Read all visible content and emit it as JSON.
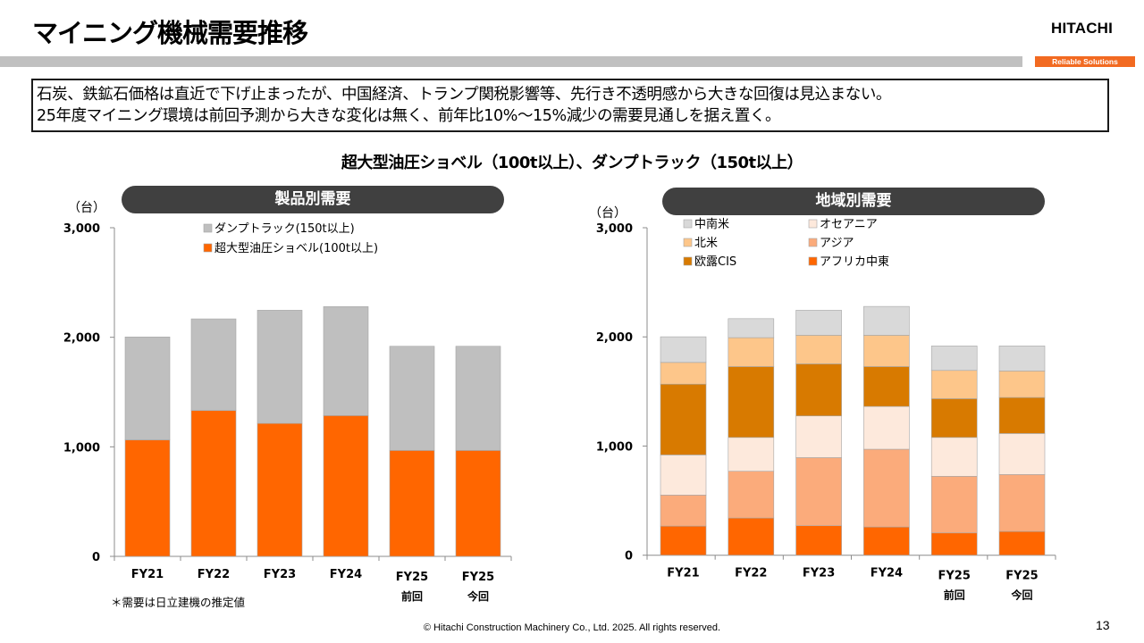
{
  "header": {
    "title": "マイニング機械需要推移",
    "logo": "HITACHI",
    "tagline": "Reliable Solutions"
  },
  "summary": {
    "line1": "石炭、鉄鉱石価格は直近で下げ止まったが、中国経済、トランプ関税影響等、先行き不透明感から大きな回復は見込まない。",
    "line2": "25年度マイニング環境は前回予測から大きな変化は無く、前年比10%～15%減少の需要見通しを据え置く。"
  },
  "subtitle": "超大型油圧ショベル（100t以上）、ダンプトラック（150t以上）",
  "footnote": "＊需要は日立建機の推定値",
  "footer": {
    "copyright": "© Hitachi Construction Machinery Co., Ltd. 2025. All rights reserved.",
    "page_number": "13"
  },
  "chart_data": [
    {
      "type": "bar",
      "stacked": true,
      "title": "製品別需要",
      "ylabel": "（台）",
      "xlabel": "",
      "ylim": [
        0,
        3000
      ],
      "yticks": [
        "0",
        "1,000",
        "2,000",
        "3,000"
      ],
      "ytick_values": [
        0,
        1000,
        2000,
        3000
      ],
      "grid": false,
      "legend_position": "top-left",
      "categories": [
        [
          "FY21"
        ],
        [
          "FY22"
        ],
        [
          "FY23"
        ],
        [
          "FY24"
        ],
        [
          "FY25",
          "前回"
        ],
        [
          "FY25",
          "今回"
        ]
      ],
      "series": [
        {
          "name": "超大型油圧ショベル(100t以上)",
          "color": "#ff6600",
          "values": [
            1063,
            1331,
            1214,
            1285,
            967,
            967
          ]
        },
        {
          "name": "ダンプトラック(150t以上)",
          "color": "#bfbfbf",
          "values": [
            940,
            837,
            1033,
            995,
            951,
            951
          ]
        }
      ],
      "legend_order": [
        1,
        0
      ]
    },
    {
      "type": "bar",
      "stacked": true,
      "title": "地域別需要",
      "ylabel": "（台）",
      "xlabel": "",
      "ylim": [
        0,
        3000
      ],
      "yticks": [
        "0",
        "1,000",
        "2,000",
        "3,000"
      ],
      "ytick_values": [
        0,
        1000,
        2000,
        3000
      ],
      "grid": false,
      "legend_position": "top-left",
      "categories": [
        [
          "FY21"
        ],
        [
          "FY22"
        ],
        [
          "FY23"
        ],
        [
          "FY24"
        ],
        [
          "FY25",
          "前回"
        ],
        [
          "FY25",
          "今回"
        ]
      ],
      "series": [
        {
          "name": "アフリカ中東",
          "color": "#ff6600",
          "values": [
            267,
            341,
            270,
            259,
            204,
            218
          ]
        },
        {
          "name": "アジア",
          "color": "#fbab7b",
          "values": [
            284,
            428,
            624,
            712,
            519,
            521
          ]
        },
        {
          "name": "オセアニア",
          "color": "#fde9dc",
          "values": [
            368,
            310,
            382,
            392,
            356,
            376
          ]
        },
        {
          "name": "欧露CIS",
          "color": "#d87a00",
          "values": [
            648,
            649,
            477,
            365,
            355,
            330
          ]
        },
        {
          "name": "北米",
          "color": "#fdc68a",
          "values": [
            199,
            265,
            262,
            287,
            259,
            243
          ]
        },
        {
          "name": "中南米",
          "color": "#d9d9d9",
          "values": [
            235,
            174,
            229,
            264,
            224,
            229
          ]
        }
      ],
      "legend_order": [
        5,
        4,
        3,
        2,
        1,
        0
      ]
    }
  ]
}
